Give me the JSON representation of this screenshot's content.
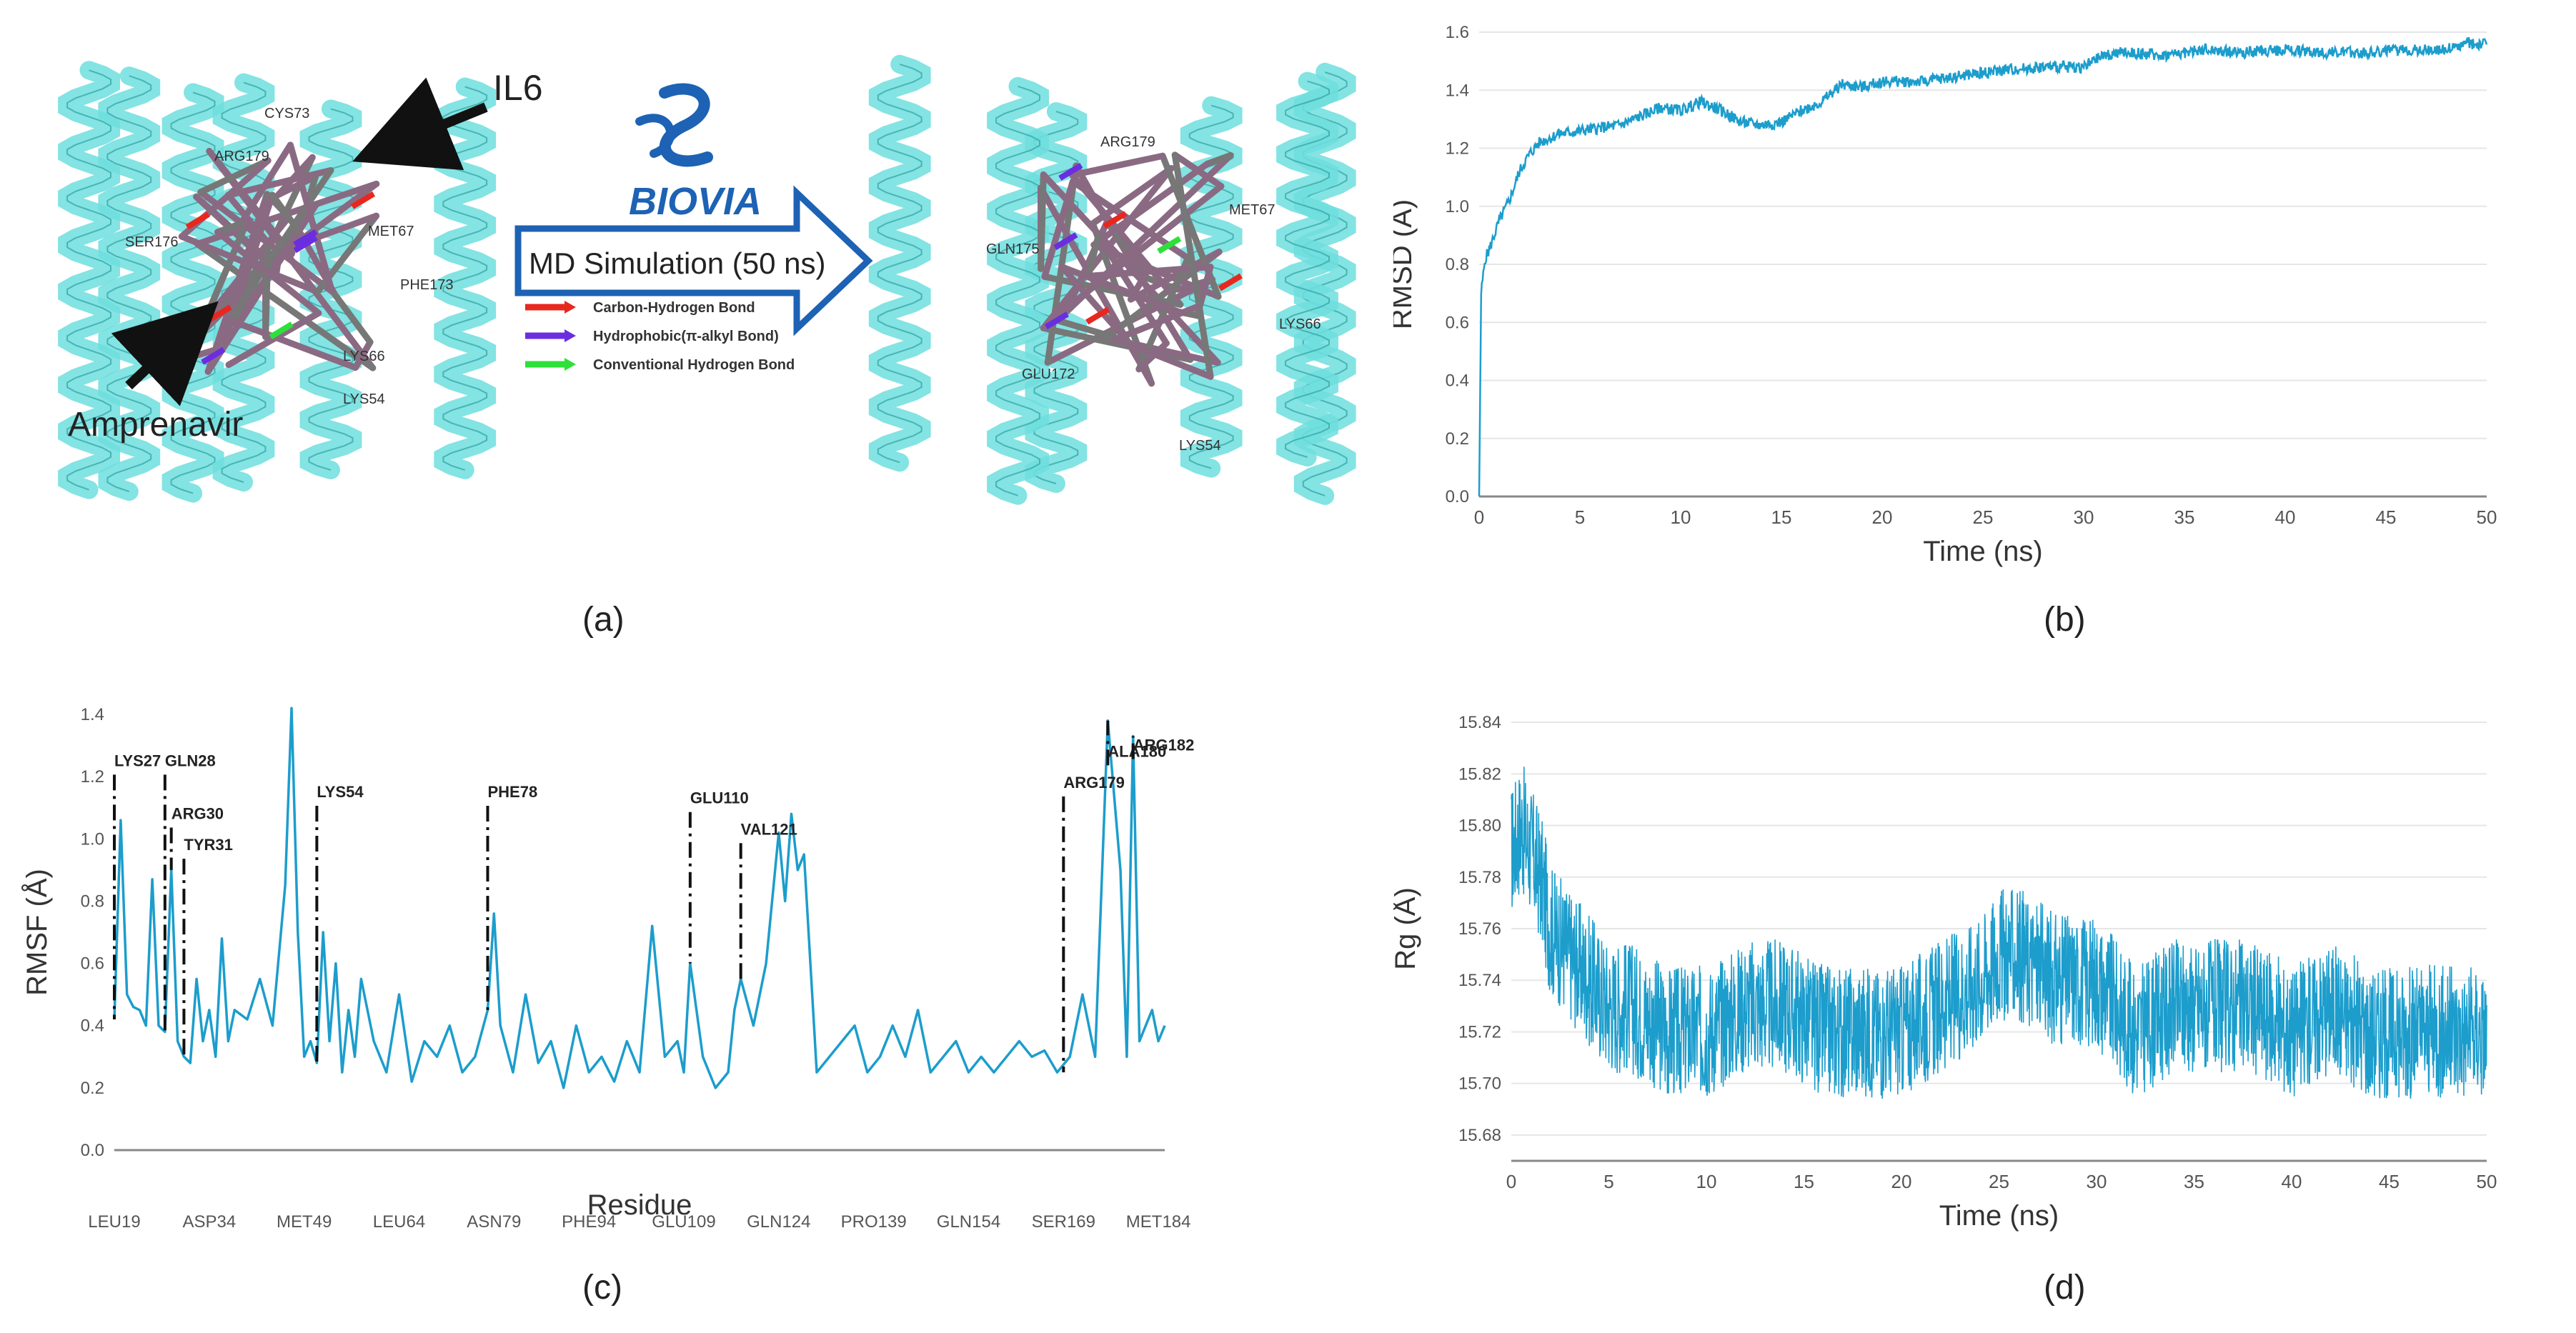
{
  "panel_labels": {
    "a": "(a)",
    "b": "(b)",
    "c": "(c)",
    "d": "(d)"
  },
  "molecular": {
    "il6_label": "IL6",
    "ligand_label": "Amprenavir",
    "software_logo_text": "BIOVIA",
    "arrow_text": "MD Simulation (50 ns)",
    "legend": [
      {
        "label": "Carbon-Hydrogen Bond",
        "color": "#e8281e"
      },
      {
        "label": "Hydrophobic(π-alkyl Bond)",
        "color": "#6a2ee0"
      },
      {
        "label": "Conventional Hydrogen Bond",
        "color": "#2ee03a"
      }
    ],
    "left_residues": [
      "CYS73",
      "ARG179",
      "SER176",
      "MET67",
      "PHE173",
      "LYS66",
      "LYS54"
    ],
    "right_residues": [
      "ARG179",
      "MET67",
      "GLN175",
      "LYS66",
      "GLU172",
      "LYS54"
    ],
    "protein_color": "#6fdede",
    "logo_color": "#1d62b4"
  },
  "chart_data": [
    {
      "id": "rmsd",
      "type": "line",
      "ylabel": "RMSD (Å)",
      "xlabel": "Time (ns)",
      "xlim": [
        0,
        50
      ],
      "ylim": [
        0,
        1.6
      ],
      "xticks": [
        0,
        5,
        10,
        15,
        20,
        25,
        30,
        35,
        40,
        45,
        50
      ],
      "yticks": [
        0.0,
        0.2,
        0.4,
        0.6,
        0.8,
        1.0,
        1.2,
        1.4,
        1.6
      ],
      "ytick_labels": [
        "0.0",
        "0.2",
        "0.4",
        "0.6",
        "0.8",
        "1.0",
        "1.2",
        "1.4",
        "1.6"
      ],
      "grid": true,
      "color": "#1c9dcc",
      "series": [
        {
          "x": [
            0,
            0.1,
            0.3,
            0.5,
            1,
            1.5,
            2,
            2.5,
            3,
            4,
            5,
            6,
            7,
            8,
            9,
            10,
            11,
            12,
            13,
            14,
            15,
            16,
            17,
            18,
            19,
            20,
            22,
            24,
            25,
            26,
            28,
            30,
            31,
            32,
            34,
            36,
            38,
            40,
            42,
            44,
            46,
            48,
            49,
            50
          ],
          "values": [
            0.0,
            0.7,
            0.82,
            0.85,
            0.95,
            1.02,
            1.12,
            1.18,
            1.22,
            1.25,
            1.26,
            1.27,
            1.28,
            1.31,
            1.34,
            1.33,
            1.36,
            1.33,
            1.29,
            1.28,
            1.29,
            1.33,
            1.36,
            1.42,
            1.41,
            1.43,
            1.43,
            1.45,
            1.46,
            1.47,
            1.48,
            1.48,
            1.52,
            1.53,
            1.52,
            1.54,
            1.53,
            1.54,
            1.53,
            1.53,
            1.54,
            1.54,
            1.56,
            1.56
          ]
        }
      ]
    },
    {
      "id": "rmsf",
      "type": "line",
      "ylabel": "RMSF (Å)",
      "xlabel": "Residue",
      "ylim": [
        0,
        1.4
      ],
      "yticks": [
        0.0,
        0.2,
        0.4,
        0.6,
        0.8,
        1.0,
        1.2,
        1.4
      ],
      "ytick_labels": [
        "0.0",
        "0.2",
        "0.4",
        "0.6",
        "0.8",
        "1.0",
        "1.2",
        "1.4"
      ],
      "categories": [
        "LEU19",
        "ASP34",
        "MET49",
        "LEU64",
        "ASN79",
        "PHE94",
        "GLU109",
        "GLN124",
        "PRO139",
        "GLN154",
        "SER169",
        "MET184"
      ],
      "grid": false,
      "color": "#1c9dcc",
      "series": [
        {
          "x": [
            19,
            20,
            21,
            22,
            23,
            24,
            25,
            26,
            27,
            28,
            29,
            30,
            31,
            32,
            33,
            34,
            35,
            36,
            37,
            38,
            40,
            42,
            44,
            46,
            47,
            48,
            49,
            50,
            51,
            52,
            53,
            54,
            55,
            56,
            57,
            58,
            60,
            62,
            64,
            66,
            68,
            70,
            72,
            74,
            76,
            78,
            79,
            80,
            82,
            84,
            86,
            88,
            90,
            92,
            94,
            96,
            98,
            100,
            102,
            104,
            106,
            108,
            109,
            110,
            112,
            114,
            116,
            117,
            118,
            120,
            122,
            124,
            125,
            126,
            127,
            128,
            130,
            132,
            134,
            136,
            138,
            140,
            142,
            144,
            146,
            148,
            150,
            152,
            154,
            156,
            158,
            160,
            162,
            164,
            166,
            168,
            170,
            172,
            174,
            176,
            178,
            179,
            180,
            181,
            182,
            183,
            184,
            185
          ],
          "values": [
            0.42,
            1.06,
            0.5,
            0.46,
            0.45,
            0.4,
            0.87,
            0.4,
            0.38,
            0.9,
            0.35,
            0.3,
            0.28,
            0.55,
            0.35,
            0.45,
            0.3,
            0.68,
            0.35,
            0.45,
            0.42,
            0.55,
            0.4,
            0.85,
            1.42,
            0.7,
            0.3,
            0.35,
            0.28,
            0.7,
            0.35,
            0.6,
            0.25,
            0.45,
            0.3,
            0.55,
            0.35,
            0.25,
            0.5,
            0.22,
            0.35,
            0.3,
            0.4,
            0.25,
            0.3,
            0.45,
            0.76,
            0.4,
            0.25,
            0.5,
            0.28,
            0.35,
            0.2,
            0.4,
            0.25,
            0.3,
            0.22,
            0.35,
            0.25,
            0.72,
            0.3,
            0.35,
            0.25,
            0.6,
            0.3,
            0.2,
            0.25,
            0.45,
            0.55,
            0.4,
            0.6,
            1.02,
            0.8,
            1.08,
            0.9,
            0.95,
            0.25,
            0.3,
            0.35,
            0.4,
            0.25,
            0.3,
            0.4,
            0.3,
            0.45,
            0.25,
            0.3,
            0.35,
            0.25,
            0.3,
            0.25,
            0.3,
            0.35,
            0.3,
            0.32,
            0.25,
            0.3,
            0.5,
            0.3,
            1.38,
            0.9,
            0.3,
            1.33,
            0.35,
            0.4,
            0.45,
            0.35,
            0.4
          ]
        }
      ],
      "annotations": [
        {
          "label": "LYS27",
          "x": 19,
          "y": 1.22
        },
        {
          "label": "GLN28",
          "x": 27,
          "y": 1.22
        },
        {
          "label": "ARG30",
          "x": 28,
          "y": 1.05
        },
        {
          "label": "TYR31",
          "x": 30,
          "y": 0.95
        },
        {
          "label": "LYS54",
          "x": 51,
          "y": 1.12
        },
        {
          "label": "PHE78",
          "x": 78,
          "y": 1.12
        },
        {
          "label": "GLU110",
          "x": 110,
          "y": 1.1
        },
        {
          "label": "VAL121",
          "x": 118,
          "y": 1.0
        },
        {
          "label": "ARG179",
          "x": 169,
          "y": 1.15
        },
        {
          "label": "ALA180",
          "x": 176,
          "y": 1.25
        },
        {
          "label": "ARG182",
          "x": 180,
          "y": 1.27
        }
      ]
    },
    {
      "id": "rg",
      "type": "line",
      "ylabel": "Rg (Å)",
      "xlabel": "Time (ns)",
      "xlim": [
        0,
        50
      ],
      "ylim": [
        15.67,
        15.85
      ],
      "xticks": [
        0,
        5,
        10,
        15,
        20,
        25,
        30,
        35,
        40,
        45,
        50
      ],
      "yticks": [
        15.68,
        15.7,
        15.72,
        15.74,
        15.76,
        15.78,
        15.8,
        15.82,
        15.84
      ],
      "ytick_labels": [
        "15.68",
        "15.70",
        "15.72",
        "15.74",
        "15.76",
        "15.78",
        "15.80",
        "15.82",
        "15.84"
      ],
      "grid": true,
      "color": "#1c9dcc",
      "series": [
        {
          "x": [
            0,
            0.5,
            1,
            1.5,
            2,
            3,
            4,
            5,
            6,
            8,
            10,
            12,
            14,
            16,
            18,
            20,
            22,
            24,
            25,
            26,
            28,
            30,
            31,
            32,
            34,
            36,
            38,
            40,
            42,
            44,
            46,
            48,
            50
          ],
          "values": [
            15.79,
            15.8,
            15.79,
            15.78,
            15.76,
            15.75,
            15.74,
            15.73,
            15.73,
            15.72,
            15.72,
            15.73,
            15.73,
            15.72,
            15.72,
            15.72,
            15.73,
            15.74,
            15.75,
            15.75,
            15.74,
            15.74,
            15.73,
            15.72,
            15.73,
            15.73,
            15.73,
            15.72,
            15.73,
            15.72,
            15.72,
            15.72,
            15.72
          ],
          "noise_amplitude": 0.026
        }
      ]
    }
  ]
}
